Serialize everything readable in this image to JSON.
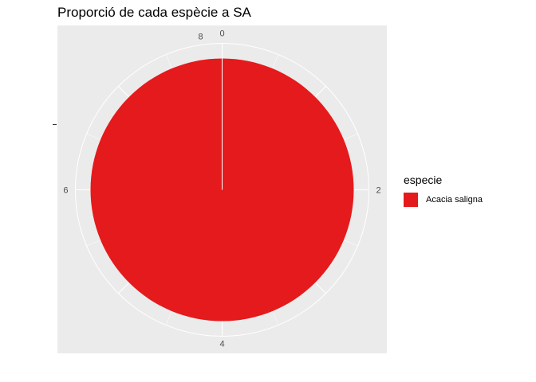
{
  "chart_data": {
    "type": "pie",
    "title": "Proporció de cada espècie a SA",
    "legend_title": "especie",
    "legend_position": "right",
    "y_axis_tick": "",
    "slices": [
      {
        "label": "Acacia saligna",
        "value": 8,
        "color": "#e41a1c"
      }
    ],
    "angular_axis": {
      "min": 0,
      "max": 8,
      "ticks": [
        0,
        2,
        4,
        6,
        8
      ]
    },
    "panel_color": "#ebebeb",
    "grid_color": "#ffffff",
    "grid": true
  }
}
